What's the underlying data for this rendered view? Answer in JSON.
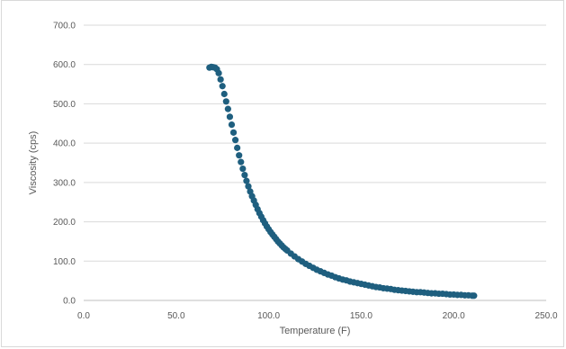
{
  "chart_data": {
    "type": "scatter",
    "title": "",
    "xlabel": "Temperature (F)",
    "ylabel": "Viscosity (cps)",
    "xlim": [
      0,
      250
    ],
    "ylim": [
      0,
      700
    ],
    "x_ticks": [
      "0.0",
      "50.0",
      "100.0",
      "150.0",
      "200.0",
      "250.0"
    ],
    "y_ticks": [
      "0.0",
      "100.0",
      "200.0",
      "300.0",
      "400.0",
      "500.0",
      "600.0",
      "700.0"
    ],
    "grid": "horizontal",
    "legend": "none",
    "marker_color": "#1f5f7f",
    "series": [
      {
        "x": [
          68,
          69,
          70,
          71,
          72,
          73,
          74,
          75,
          76,
          77,
          78,
          79,
          80,
          81,
          82,
          83,
          84,
          85,
          86,
          87,
          88,
          89,
          90,
          91,
          92,
          93,
          94,
          95,
          96,
          97,
          98,
          99,
          100,
          101,
          102,
          103,
          104,
          105,
          106,
          107,
          108,
          109,
          110,
          112,
          114,
          116,
          118,
          120,
          122,
          124,
          126,
          128,
          130,
          132,
          134,
          136,
          138,
          140,
          142,
          144,
          146,
          148,
          150,
          152,
          154,
          156,
          158,
          160,
          162,
          164,
          166,
          168,
          170,
          172,
          174,
          176,
          178,
          180,
          182,
          184,
          186,
          188,
          190,
          192,
          194,
          196,
          198,
          200,
          202,
          204,
          206,
          208,
          210,
          211
        ],
        "y": [
          592,
          594,
          593,
          592,
          588,
          578,
          562,
          545,
          525,
          506,
          487,
          467,
          447,
          427,
          408,
          388,
          369,
          352,
          335,
          319,
          304,
          290,
          277,
          265,
          254,
          243,
          232,
          222,
          213,
          204,
          196,
          188,
          181,
          174,
          168,
          162,
          156,
          150,
          145,
          140,
          135,
          131,
          127,
          119,
          112,
          105,
          99,
          93,
          88,
          83,
          78,
          74,
          70,
          66,
          63,
          59,
          56,
          53,
          51,
          48,
          46,
          44,
          42,
          40,
          38,
          36,
          34,
          33,
          31,
          30,
          29,
          27,
          26,
          25,
          24,
          23,
          22,
          21,
          21,
          20,
          19,
          18,
          18,
          17,
          17,
          16,
          15,
          15,
          14,
          14,
          13,
          13,
          12,
          12
        ]
      }
    ]
  }
}
